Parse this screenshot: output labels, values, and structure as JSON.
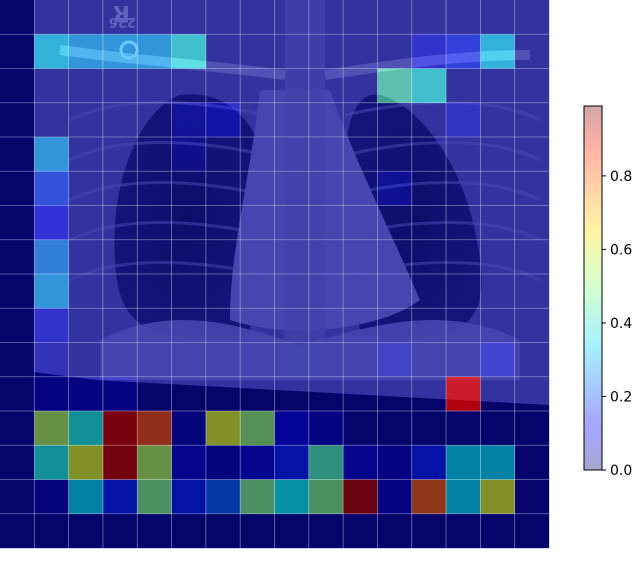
{
  "figure": {
    "image_text": [
      "R",
      "226"
    ]
  },
  "chart_data": {
    "type": "heatmap",
    "title": "",
    "xlabel": "",
    "ylabel": "",
    "grid": true,
    "rows": 16,
    "cols": 16,
    "colormap": "jet",
    "overlay_alpha": 0.35,
    "legend": "colorbar, right",
    "colorbar": {
      "ticks": [
        0.0,
        0.2,
        0.4,
        0.6,
        0.8
      ],
      "tick_labels": [
        "0.0",
        "0.2",
        "0.4",
        "0.6",
        "0.8"
      ],
      "range": [
        0.0,
        0.99
      ]
    },
    "values": [
      [
        0.02,
        0.02,
        0.02,
        0.02,
        0.02,
        0.02,
        0.02,
        0.02,
        0.02,
        0.02,
        0.02,
        0.02,
        0.02,
        0.02,
        0.02,
        0.02
      ],
      [
        0.02,
        0.35,
        0.3,
        0.3,
        0.3,
        0.4,
        0.02,
        0.02,
        0.02,
        0.02,
        0.02,
        0.02,
        0.1,
        0.15,
        0.35,
        0.02
      ],
      [
        0.02,
        0.02,
        0.02,
        0.02,
        0.02,
        0.02,
        0.02,
        0.02,
        0.02,
        0.02,
        0.02,
        0.45,
        0.4,
        0.02,
        0.02,
        0.02
      ],
      [
        0.02,
        0.02,
        0.02,
        0.02,
        0.02,
        0.08,
        0.1,
        0.02,
        0.02,
        0.02,
        0.02,
        0.02,
        0.02,
        0.08,
        0.02,
        0.02
      ],
      [
        0.02,
        0.3,
        0.02,
        0.02,
        0.02,
        0.06,
        0.02,
        0.02,
        0.02,
        0.02,
        0.02,
        0.02,
        0.02,
        0.02,
        0.02,
        0.02
      ],
      [
        0.02,
        0.18,
        0.02,
        0.02,
        0.02,
        0.02,
        0.02,
        0.02,
        0.02,
        0.02,
        0.02,
        0.08,
        0.02,
        0.02,
        0.02,
        0.02
      ],
      [
        0.02,
        0.12,
        0.02,
        0.02,
        0.02,
        0.02,
        0.02,
        0.02,
        0.02,
        0.02,
        0.02,
        0.02,
        0.02,
        0.02,
        0.02,
        0.02
      ],
      [
        0.02,
        0.26,
        0.02,
        0.02,
        0.02,
        0.02,
        0.02,
        0.02,
        0.02,
        0.02,
        0.02,
        0.02,
        0.02,
        0.02,
        0.02,
        0.02
      ],
      [
        0.02,
        0.3,
        0.02,
        0.02,
        0.02,
        0.02,
        0.02,
        0.02,
        0.02,
        0.02,
        0.02,
        0.02,
        0.02,
        0.02,
        0.02,
        0.02
      ],
      [
        0.02,
        0.1,
        0.02,
        0.02,
        0.02,
        0.02,
        0.02,
        0.02,
        0.02,
        0.02,
        0.02,
        0.02,
        0.02,
        0.02,
        0.02,
        0.02
      ],
      [
        0.02,
        0.06,
        0.02,
        0.02,
        0.02,
        0.02,
        0.02,
        0.02,
        0.02,
        0.02,
        0.02,
        0.06,
        0.02,
        0.02,
        0.08,
        0.02
      ],
      [
        0.02,
        0.06,
        0.06,
        0.06,
        0.02,
        0.02,
        0.02,
        0.02,
        0.02,
        0.02,
        0.02,
        0.02,
        0.02,
        0.9,
        0.02,
        0.02
      ],
      [
        0.02,
        0.55,
        0.4,
        0.97,
        0.8,
        0.05,
        0.6,
        0.52,
        0.1,
        0.06,
        0.02,
        0.02,
        0.02,
        0.02,
        0.02,
        0.02
      ],
      [
        0.02,
        0.4,
        0.6,
        0.98,
        0.55,
        0.08,
        0.05,
        0.08,
        0.15,
        0.45,
        0.08,
        0.06,
        0.15,
        0.35,
        0.35,
        0.02
      ],
      [
        0.02,
        0.05,
        0.35,
        0.15,
        0.5,
        0.15,
        0.22,
        0.5,
        0.38,
        0.5,
        0.99,
        0.06,
        0.78,
        0.35,
        0.6,
        0.02
      ],
      [
        0.02,
        0.02,
        0.02,
        0.02,
        0.02,
        0.02,
        0.02,
        0.02,
        0.02,
        0.02,
        0.02,
        0.02,
        0.02,
        0.02,
        0.02,
        0.02
      ]
    ]
  }
}
